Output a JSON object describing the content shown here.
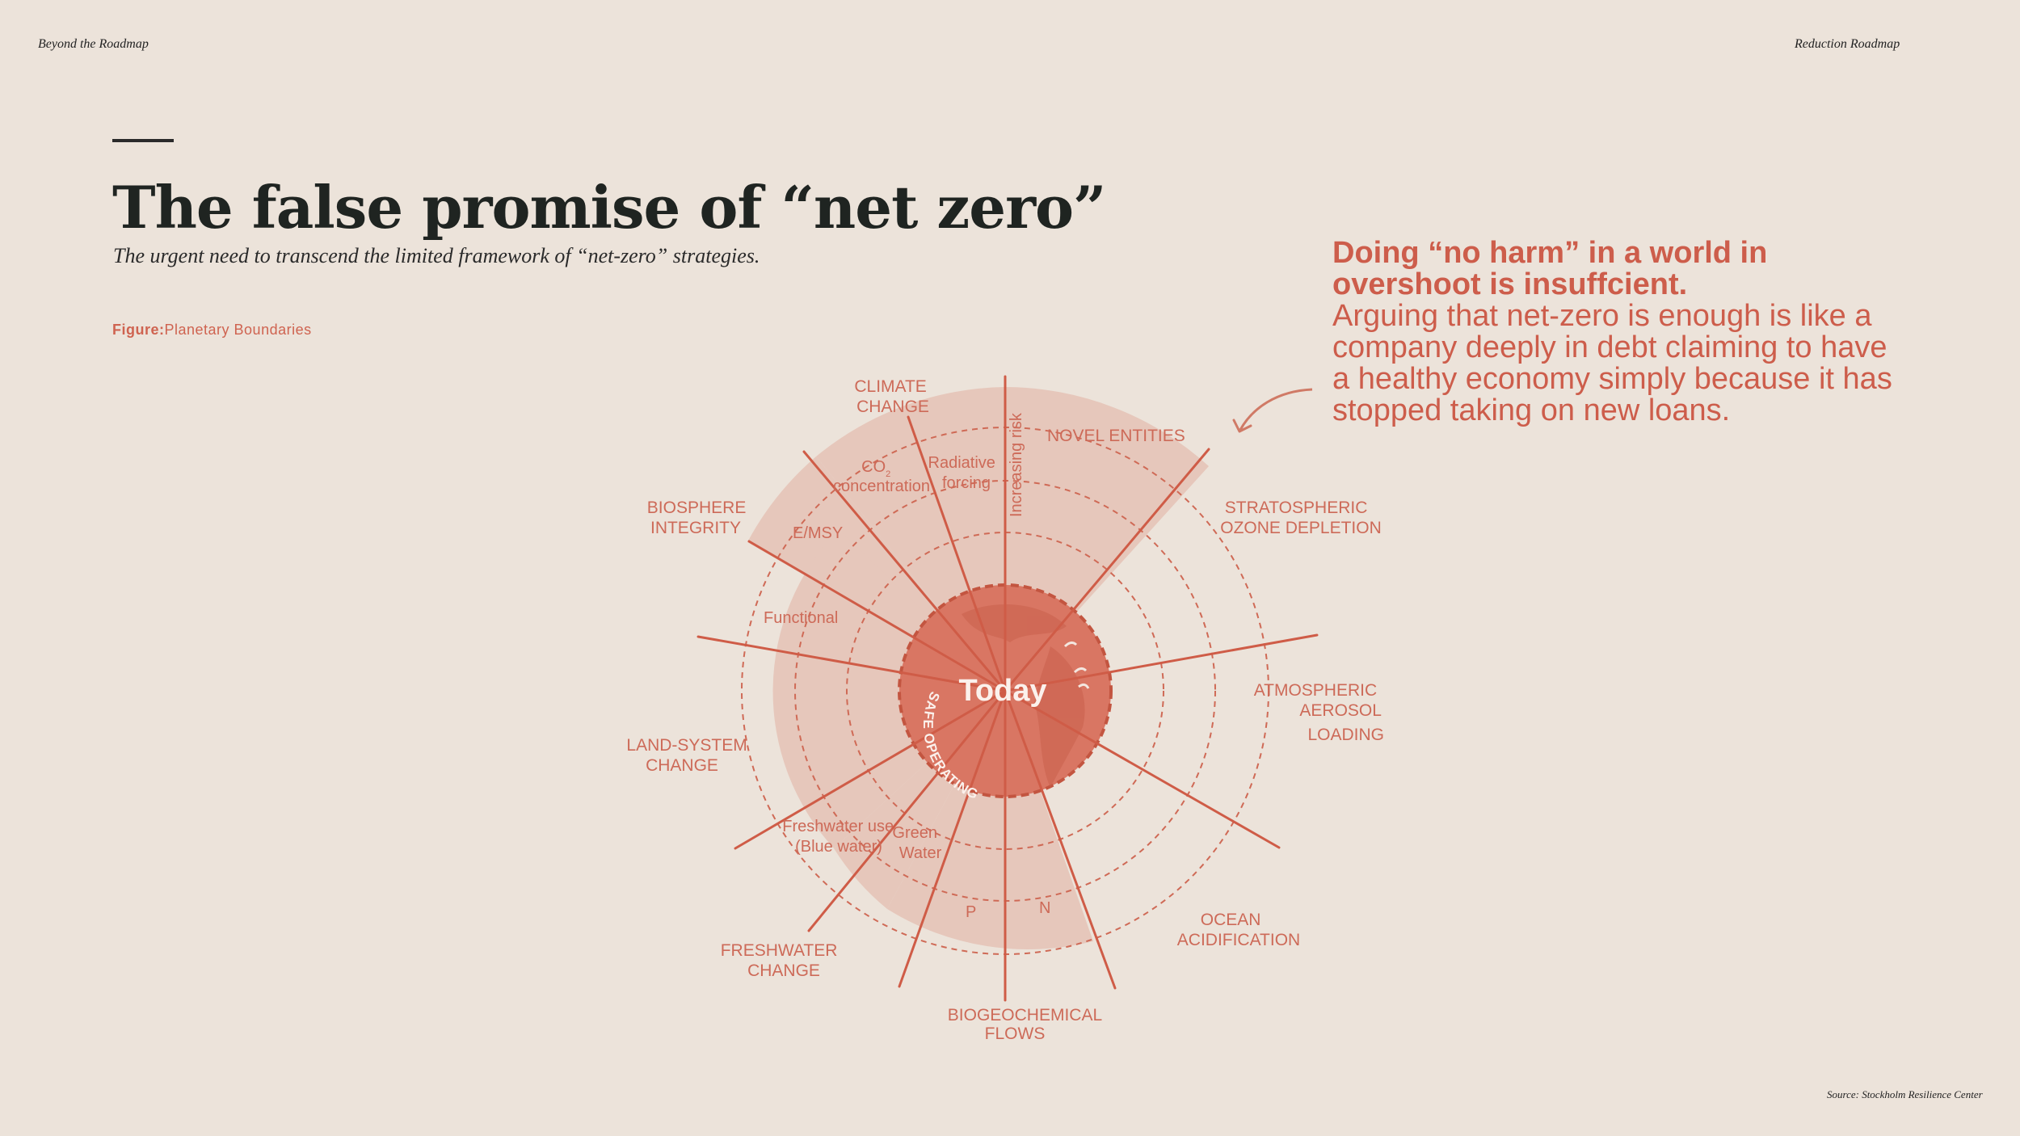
{
  "header": {
    "left": "Beyond the Roadmap",
    "right": "Reduction Roadmap"
  },
  "title": "The false promise of “net zero”",
  "subtitle": "The urgent need to transcend the limited framework of “net-zero” strategies.",
  "figure": {
    "prefix": "Figure:",
    "name": "Planetary Boundaries"
  },
  "quote": {
    "bold": "Doing “no harm” in a world in overshoot is insuffcient.",
    "body": "Arguing that net-zero is enough is like a company deeply in debt claiming to have a healthy economy simply because it has stopped taking on new loans."
  },
  "diagram": {
    "center_label": "Today",
    "ring_label": "SAFE OPERATING SPACE",
    "axis_label": "Increasing risk",
    "boundaries": {
      "climate_change": [
        "CLIMATE",
        "CHANGE"
      ],
      "novel_entities": [
        "NOVEL ENTITIES"
      ],
      "stratospheric": [
        "STRATOSPHERIC",
        "OZONE DEPLETION"
      ],
      "aerosol": [
        "ATMOSPHERIC",
        "AEROSOL",
        "LOADING"
      ],
      "ocean": [
        "OCEAN",
        "ACIDIFICATION"
      ],
      "biogeochemical": [
        "BIOGEOCHEMICAL",
        "FLOWS"
      ],
      "freshwater": [
        "FRESHWATER",
        "CHANGE"
      ],
      "land_system": [
        "LAND-SYSTEM",
        "CHANGE"
      ],
      "biosphere": [
        "BIOSPHERE",
        "INTEGRITY"
      ]
    },
    "sub_labels": {
      "co2": [
        "CO",
        "concentration"
      ],
      "co2_sub": "2",
      "radiative": [
        "Radiative",
        "forcing"
      ],
      "emsy": "E/MSY",
      "functional": "Functional",
      "blue_water": [
        "Freshwater use",
        "(Blue water)"
      ],
      "green_water": [
        "Green",
        "Water"
      ],
      "p": "P",
      "n": "N"
    }
  },
  "source": "Source: Stockholm Resilience Center",
  "colors": {
    "background": "#ece3da",
    "accent": "#cd5d4b",
    "wedge": "#e6c3b6",
    "wedge_strong": "#e4b3a3",
    "center": "#d8735f"
  }
}
